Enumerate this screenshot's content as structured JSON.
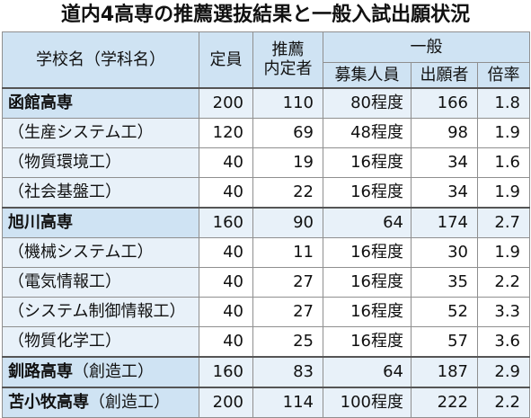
{
  "title": "道内4高専の推薦選抜結果と一般入試出願状況",
  "headers": {
    "school": "学校名（学科名）",
    "capacity": "定員",
    "suisen": "推薦\n内定者",
    "ippan": "一般",
    "boshu": "募集人員",
    "applicants": "出願者",
    "ratio": "倍率"
  },
  "rows": [
    {
      "type": "school",
      "name": "函館高専",
      "suffix": "",
      "capacity": "200",
      "suisen": "110",
      "boshu": "80程度",
      "applicants": "166",
      "ratio": "1.8"
    },
    {
      "type": "dept",
      "name": "（生産システム工）",
      "suffix": "",
      "capacity": "120",
      "suisen": "69",
      "boshu": "48程度",
      "applicants": "98",
      "ratio": "1.9"
    },
    {
      "type": "dept",
      "name": "（物質環境工）",
      "suffix": "",
      "capacity": "40",
      "suisen": "19",
      "boshu": "16程度",
      "applicants": "34",
      "ratio": "1.6"
    },
    {
      "type": "dept",
      "name": "（社会基盤工）",
      "suffix": "",
      "capacity": "40",
      "suisen": "22",
      "boshu": "16程度",
      "applicants": "34",
      "ratio": "1.9"
    },
    {
      "type": "school",
      "name": "旭川高専",
      "suffix": "",
      "capacity": "160",
      "suisen": "90",
      "boshu": "64",
      "applicants": "174",
      "ratio": "2.7"
    },
    {
      "type": "dept",
      "name": "（機械システム工）",
      "suffix": "",
      "capacity": "40",
      "suisen": "11",
      "boshu": "16程度",
      "applicants": "30",
      "ratio": "1.9"
    },
    {
      "type": "dept",
      "name": "（電気情報工）",
      "suffix": "",
      "capacity": "40",
      "suisen": "27",
      "boshu": "16程度",
      "applicants": "35",
      "ratio": "2.2"
    },
    {
      "type": "dept",
      "name": "（システム制御情報工）",
      "suffix": "",
      "capacity": "40",
      "suisen": "27",
      "boshu": "16程度",
      "applicants": "52",
      "ratio": "3.3"
    },
    {
      "type": "dept",
      "name": "（物質化学工）",
      "suffix": "",
      "capacity": "40",
      "suisen": "25",
      "boshu": "16程度",
      "applicants": "57",
      "ratio": "3.6"
    },
    {
      "type": "school",
      "name": "釧路高専",
      "suffix": "（創造工）",
      "capacity": "160",
      "suisen": "83",
      "boshu": "64",
      "applicants": "187",
      "ratio": "2.9"
    },
    {
      "type": "school",
      "name": "苫小牧高専",
      "suffix": "（創造工）",
      "capacity": "200",
      "suisen": "114",
      "boshu": "100程度",
      "applicants": "222",
      "ratio": "2.2"
    }
  ]
}
